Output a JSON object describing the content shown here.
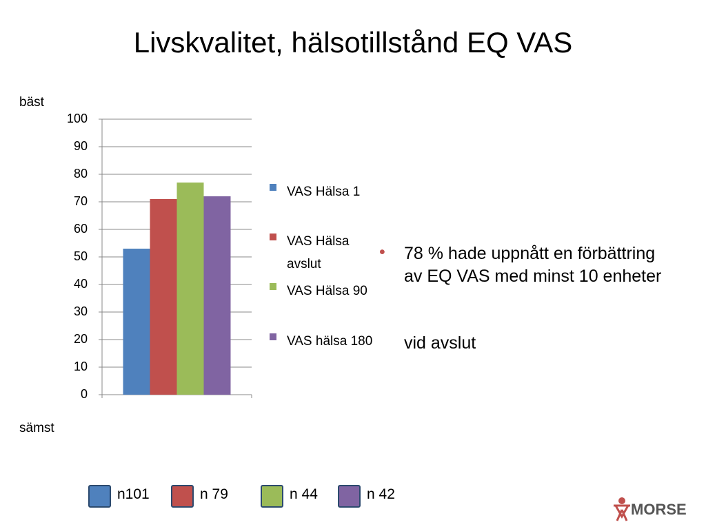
{
  "title": "Livskvalitet, hälsotillstånd EQ VAS",
  "chart_data": {
    "type": "bar",
    "y_top_label": "bäst",
    "y_bottom_label": "sämst",
    "categories": [
      null
    ],
    "series": [
      {
        "name": "VAS Hälsa 1",
        "color": "#4f81bd",
        "values": [
          53
        ]
      },
      {
        "name": "VAS Hälsa avslut",
        "color": "#c0504d",
        "values": [
          71
        ]
      },
      {
        "name": "VAS Hälsa 90",
        "color": "#9bbb59",
        "values": [
          77
        ]
      },
      {
        "name": "VAS hälsa 180",
        "color": "#8064a2",
        "values": [
          72
        ]
      }
    ],
    "ylim": [
      0,
      100
    ],
    "yticks": [
      0,
      10,
      20,
      30,
      40,
      50,
      60,
      70,
      80,
      90,
      100
    ],
    "grid": true,
    "legend": "right"
  },
  "sample_sizes": [
    "n101",
    "n 79",
    "n 44",
    "n 42"
  ],
  "bullet": {
    "text": "78 % hade uppnått en förbättring av EQ VAS med minst 10 enheter",
    "continuation": "vid avslut"
  },
  "logo": {
    "text": "MORSE"
  }
}
